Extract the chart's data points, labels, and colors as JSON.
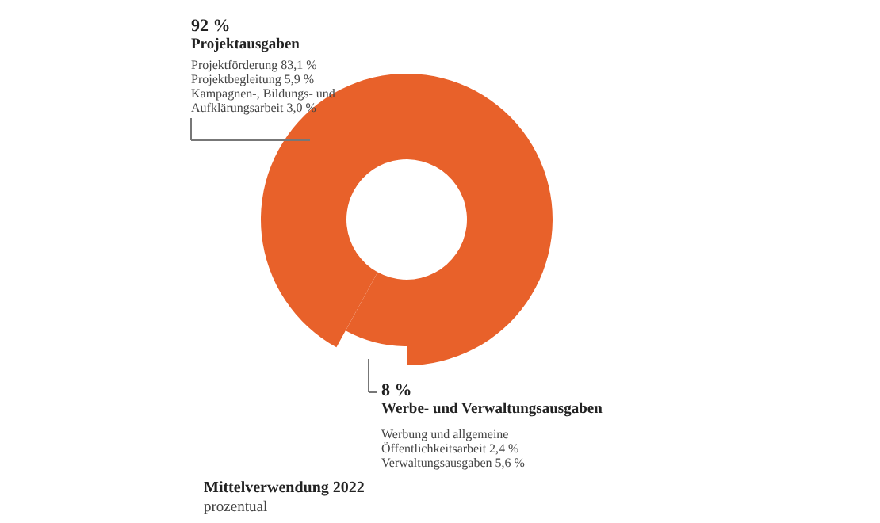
{
  "chart_data": {
    "type": "donut",
    "title": "Mittelverwendung 2022",
    "subtitle": "prozentual",
    "categories": [
      "Projektausgaben",
      "Werbe- und Verwaltungsausgaben"
    ],
    "values": [
      92,
      8
    ],
    "colors": [
      "#e8612a",
      "#e8612a"
    ],
    "value_labels": [
      "92 %",
      "8 %"
    ],
    "annotations": [
      "Projektförderung  83,1 %",
      "Projektbegleitung  5,9 %",
      "Kampagnen-, Bildungs- und",
      "Aufklärungsarbeit  3,0 %",
      "Werbung und allgemeine",
      "Öffentlichkeitsarbeit  2,4 %",
      "Verwaltungsausgaben  5,6 %"
    ],
    "legend": false
  }
}
